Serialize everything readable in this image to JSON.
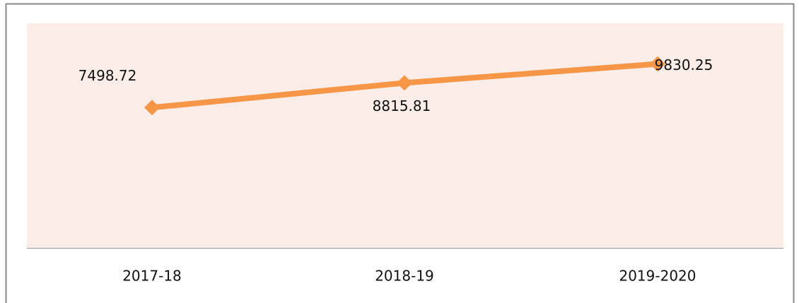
{
  "chart_data": {
    "type": "line",
    "categories": [
      "2017-18",
      "2018-19",
      "2019-2020"
    ],
    "series": [
      {
        "color": "#f79646",
        "values": [
          7498.72,
          8815.81,
          9830.25
        ]
      }
    ],
    "ylim": [
      0,
      12000
    ],
    "background": "#fcede8"
  }
}
